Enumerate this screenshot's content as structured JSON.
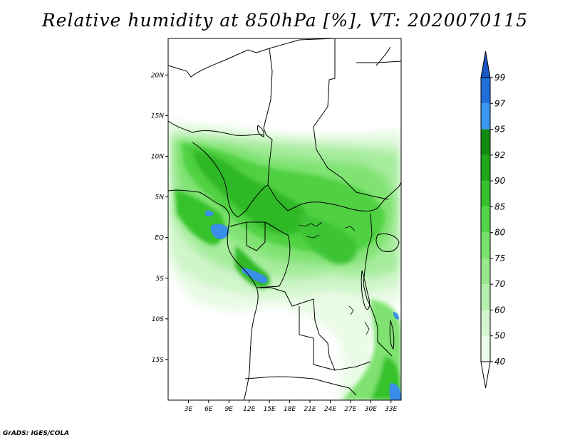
{
  "title": "Relative humidity at 850hPa [%], VT: 2020070115",
  "credit": "GrADS: IGES/COLA",
  "map": {
    "lon_range": [
      0,
      34.5
    ],
    "lat_range": [
      -20,
      24.5
    ],
    "lat_ticks": [
      {
        "value": 20,
        "label": "20N"
      },
      {
        "value": 15,
        "label": "15N"
      },
      {
        "value": 10,
        "label": "10N"
      },
      {
        "value": 5,
        "label": "5N"
      },
      {
        "value": 0,
        "label": "EQ"
      },
      {
        "value": -5,
        "label": "5S"
      },
      {
        "value": -10,
        "label": "10S"
      },
      {
        "value": -15,
        "label": "15S"
      }
    ],
    "lon_ticks": [
      {
        "value": 3,
        "label": "3E"
      },
      {
        "value": 6,
        "label": "6E"
      },
      {
        "value": 9,
        "label": "9E"
      },
      {
        "value": 12,
        "label": "12E"
      },
      {
        "value": 15,
        "label": "15E"
      },
      {
        "value": 18,
        "label": "18E"
      },
      {
        "value": 21,
        "label": "21E"
      },
      {
        "value": 24,
        "label": "24E"
      },
      {
        "value": 27,
        "label": "27E"
      },
      {
        "value": 30,
        "label": "30E"
      },
      {
        "value": 33,
        "label": "33E"
      }
    ]
  },
  "colorbar": {
    "levels": [
      "40",
      "50",
      "60",
      "70",
      "75",
      "80",
      "85",
      "90",
      "92",
      "95",
      "97",
      "99"
    ],
    "colors": [
      "#ffffff",
      "#ecfcea",
      "#d3f6cf",
      "#b5efae",
      "#97e98c",
      "#78e26c",
      "#55d64a",
      "#36c22c",
      "#1fa81a",
      "#128c10",
      "#3a96ee",
      "#2070dc",
      "#1857c4"
    ]
  }
}
